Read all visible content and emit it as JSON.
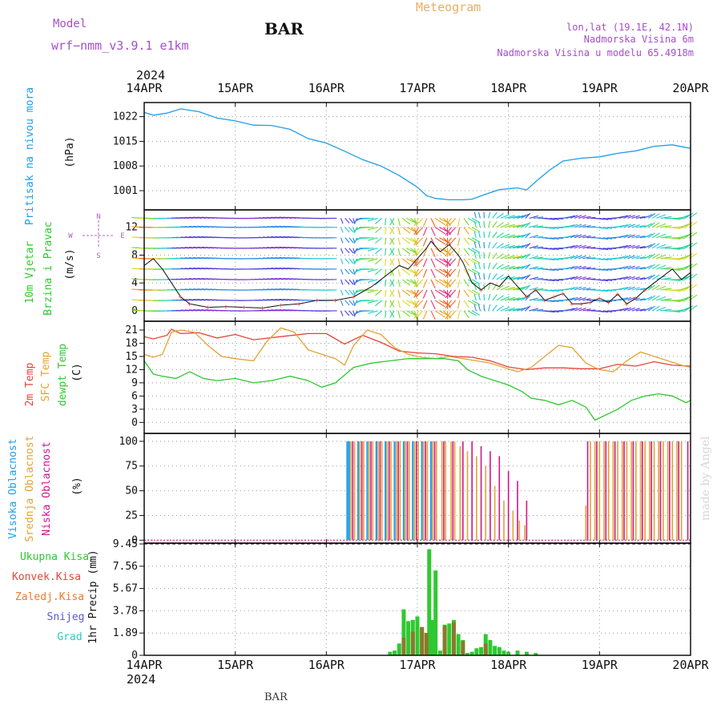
{
  "header": {
    "model_label": "Model",
    "model_name": "wrf−nmm_v3.9.1  e1km",
    "station": "BAR",
    "meteogram_label": "Meteogram",
    "coords": "lon,lat (19.1E, 42.1N)",
    "altitude": "Nadmorska Visina 6m",
    "model_altitude": "Nadmorska Visina u modelu 65.4918m",
    "footer_station": "BAR",
    "watermark": "made by Angel"
  },
  "colors": {
    "pressure": "#1e9ee6",
    "temp2m": "#e8433a",
    "sfc": "#e3a236",
    "dewpt": "#2ec930",
    "cloud_high": "#1e9ee6",
    "cloud_mid": "#e3a236",
    "cloud_low": "#d0168a",
    "precip_total": "#2ec930",
    "precip_conv": "#e8433a",
    "precip_frz": "#f07a2a",
    "precip_snow": "#5858d8",
    "precip_hail": "#2ec9c0",
    "header_purple": "#a64ecb",
    "meteogram_orange": "#e8b060"
  },
  "time_axis": {
    "year": "2024",
    "dates": [
      "14APR",
      "15APR",
      "16APR",
      "17APR",
      "18APR",
      "19APR",
      "20APR"
    ]
  },
  "chart_data": [
    {
      "type": "line",
      "panel": "pressure",
      "ylabel_parts": [
        "Pritisak na nivou mora",
        "(hPa)"
      ],
      "ylim": [
        996,
        1026
      ],
      "yticks": [
        "1001",
        "1008",
        "1015",
        "1022"
      ],
      "grid": true,
      "series": [
        {
          "name": "Pritisak na nivou mora",
          "x": [
            0,
            0.1,
            0.25,
            0.4,
            0.6,
            0.8,
            1.0,
            1.2,
            1.4,
            1.6,
            1.8,
            2.0,
            2.2,
            2.4,
            2.6,
            2.8,
            3.0,
            3.1,
            3.2,
            3.35,
            3.5,
            3.6,
            3.75,
            3.9,
            4.1,
            4.2,
            4.3,
            4.45,
            4.6,
            4.8,
            5.0,
            5.2,
            5.4,
            5.6,
            5.8,
            6.0
          ],
          "y": [
            1023.2,
            1022.4,
            1023.0,
            1024.2,
            1023.4,
            1021.6,
            1020.8,
            1019.6,
            1019.5,
            1018.4,
            1015.8,
            1014.5,
            1012.2,
            1009.8,
            1008.0,
            1005.3,
            1002.0,
            999.6,
            998.8,
            998.4,
            998.4,
            998.6,
            1000.0,
            1001.3,
            1001.8,
            1001.2,
            1003.6,
            1006.8,
            1009.4,
            1010.2,
            1010.6,
            1011.6,
            1012.3,
            1013.6,
            1014.0,
            1013.0
          ]
        }
      ]
    },
    {
      "type": "scatter",
      "panel": "wind",
      "ylabel_parts": [
        "10m Vjetar",
        "Brzina i Pravac",
        "(m/s)"
      ],
      "compass": [
        "N",
        "W",
        "E",
        "S"
      ],
      "ylim": [
        -1.5,
        14
      ],
      "yticks": [
        "0",
        "4",
        "8",
        "12"
      ],
      "grid": true,
      "series": [
        {
          "name": "Brzina",
          "x": [
            0,
            0.1,
            0.2,
            0.3,
            0.4,
            0.5,
            0.7,
            0.9,
            1.1,
            1.3,
            1.5,
            1.7,
            1.9,
            2.1,
            2.3,
            2.5,
            2.7,
            2.8,
            2.9,
            3.0,
            3.1,
            3.15,
            3.25,
            3.35,
            3.45,
            3.5,
            3.6,
            3.7,
            3.8,
            3.9,
            4.0,
            4.1,
            4.2,
            4.3,
            4.4,
            4.5,
            4.6,
            4.7,
            4.8,
            4.9,
            5.0,
            5.1,
            5.2,
            5.3,
            5.4,
            5.5,
            5.6,
            5.7,
            5.8,
            5.9,
            6.0
          ],
          "y": [
            6.5,
            7.5,
            6.0,
            4.0,
            2.0,
            1.0,
            0.5,
            0.6,
            0.5,
            0.4,
            0.8,
            1.0,
            1.5,
            1.5,
            2.0,
            3.5,
            5.5,
            6.5,
            6.0,
            7.5,
            9.0,
            10.0,
            8.5,
            9.5,
            8.0,
            7.0,
            4.0,
            3.0,
            4.0,
            3.5,
            5.0,
            3.5,
            2.0,
            3.0,
            1.5,
            2.0,
            2.5,
            1.0,
            1.0,
            1.2,
            1.8,
            1.2,
            2.4,
            1.0,
            1.8,
            3.0,
            4.0,
            5.0,
            6.0,
            4.5,
            5.5
          ]
        }
      ]
    },
    {
      "type": "line",
      "panel": "temperature",
      "ylabel_parts": [
        "2m Temp",
        "SFC Temp",
        "dewpt Temp",
        "(C)"
      ],
      "ylim": [
        -2,
        23
      ],
      "yticks": [
        "0",
        "3",
        "6",
        "9",
        "12",
        "15",
        "18",
        "21"
      ],
      "grid": true,
      "series": [
        {
          "name": "2m Temp",
          "x": [
            0,
            0.1,
            0.25,
            0.3,
            0.4,
            0.6,
            0.8,
            1.0,
            1.2,
            1.5,
            1.8,
            2.0,
            2.2,
            2.4,
            2.6,
            2.8,
            3.0,
            3.2,
            3.4,
            3.6,
            3.8,
            4.0,
            4.2,
            4.4,
            4.6,
            4.8,
            5.0,
            5.2,
            5.4,
            5.6,
            5.8,
            6.0
          ],
          "y": [
            19.5,
            19.0,
            19.8,
            21.2,
            20.2,
            20.4,
            19.2,
            20.0,
            18.8,
            19.5,
            20.2,
            20.2,
            17.8,
            19.8,
            18.2,
            16.2,
            15.8,
            15.6,
            15.0,
            14.8,
            14.0,
            12.6,
            12.0,
            12.4,
            12.4,
            12.2,
            12.2,
            13.2,
            12.8,
            13.8,
            13.0,
            12.8
          ]
        },
        {
          "name": "SFC Temp",
          "x": [
            0,
            0.1,
            0.2,
            0.3,
            0.4,
            0.55,
            0.7,
            0.85,
            1.0,
            1.2,
            1.35,
            1.5,
            1.65,
            1.8,
            1.95,
            2.1,
            2.2,
            2.3,
            2.45,
            2.6,
            2.75,
            2.9,
            3.05,
            3.2,
            3.35,
            3.5,
            3.65,
            3.8,
            3.95,
            4.1,
            4.25,
            4.4,
            4.55,
            4.7,
            4.85,
            5.0,
            5.15,
            5.3,
            5.45,
            5.6,
            5.75,
            5.9,
            6.0
          ],
          "y": [
            15.5,
            14.8,
            15.5,
            20.5,
            21.0,
            20.5,
            17.5,
            15.0,
            14.5,
            14.0,
            18.5,
            21.5,
            20.5,
            16.5,
            15.5,
            14.5,
            13.0,
            17.5,
            21.0,
            20.0,
            17.0,
            15.5,
            14.8,
            14.5,
            15.0,
            14.5,
            14.0,
            13.5,
            12.5,
            11.5,
            12.5,
            15.0,
            17.5,
            17.0,
            13.5,
            12.0,
            11.5,
            14.0,
            16.0,
            15.0,
            14.0,
            13.0,
            12.5
          ]
        },
        {
          "name": "dewpt Temp",
          "x": [
            0,
            0.1,
            0.2,
            0.35,
            0.5,
            0.65,
            0.8,
            1.0,
            1.2,
            1.4,
            1.6,
            1.8,
            1.95,
            2.1,
            2.3,
            2.5,
            2.7,
            2.9,
            3.1,
            3.3,
            3.45,
            3.55,
            3.7,
            3.85,
            4.0,
            4.15,
            4.25,
            4.4,
            4.55,
            4.7,
            4.85,
            4.95,
            5.05,
            5.2,
            5.35,
            5.5,
            5.65,
            5.8,
            5.95,
            6.0
          ],
          "y": [
            14.0,
            11.0,
            10.5,
            10.0,
            11.5,
            10.0,
            9.5,
            10.0,
            9.0,
            9.5,
            10.5,
            9.5,
            8.0,
            9.0,
            12.5,
            13.5,
            14.0,
            14.5,
            14.5,
            14.5,
            14.0,
            12.0,
            10.5,
            9.5,
            8.5,
            7.0,
            5.5,
            5.0,
            4.0,
            5.0,
            3.5,
            0.5,
            1.5,
            3.0,
            5.0,
            6.0,
            6.5,
            6.0,
            4.5,
            5.0
          ]
        }
      ]
    },
    {
      "type": "bar",
      "panel": "clouds",
      "ylabel_parts": [
        "Visoka Oblacnost",
        "Srednja Oblacnost",
        "Niska Oblacnost",
        "(%)"
      ],
      "ylim": [
        0,
        100
      ],
      "yticks": [
        "0",
        "25",
        "50",
        "75",
        "100"
      ],
      "grid": true,
      "series": [
        {
          "name": "Visoka Oblacnost",
          "x": [
            2.23,
            2.25,
            2.35,
            2.45,
            2.55,
            2.65,
            2.75,
            2.85,
            2.95,
            3.05,
            3.15
          ],
          "values": [
            100,
            100,
            100,
            100,
            100,
            100,
            100,
            100,
            100,
            100,
            100
          ]
        },
        {
          "name": "Srednja Oblacnost",
          "x": [
            2.27,
            2.31,
            2.37,
            2.41,
            2.47,
            2.51,
            2.57,
            2.61,
            2.67,
            2.71,
            2.77,
            2.81,
            2.87,
            2.91,
            2.97,
            3.01,
            3.07,
            3.11,
            3.17,
            3.21,
            3.27,
            3.31,
            3.37,
            3.41,
            3.47,
            3.55,
            3.65,
            3.75,
            3.85,
            3.95,
            4.05,
            4.12,
            4.18,
            4.85,
            4.9,
            4.95,
            5.0,
            5.05,
            5.1,
            5.15,
            5.2,
            5.25,
            5.3,
            5.35,
            5.4,
            5.45,
            5.5,
            5.55,
            5.6,
            5.65,
            5.7,
            5.75,
            5.8,
            5.85,
            5.9
          ],
          "values": [
            100,
            100,
            100,
            100,
            100,
            100,
            100,
            100,
            100,
            100,
            100,
            100,
            100,
            100,
            100,
            100,
            100,
            100,
            100,
            100,
            100,
            100,
            100,
            100,
            95,
            90,
            85,
            75,
            55,
            40,
            30,
            20,
            15,
            35,
            100,
            100,
            100,
            100,
            100,
            100,
            100,
            100,
            100,
            100,
            100,
            100,
            100,
            100,
            100,
            100,
            100,
            100,
            100,
            100,
            100
          ]
        },
        {
          "name": "Niska Oblacnost",
          "x": [
            2.29,
            2.39,
            2.49,
            2.59,
            2.69,
            2.79,
            2.89,
            2.99,
            3.09,
            3.19,
            3.29,
            3.39,
            3.5,
            3.6,
            3.7,
            3.8,
            3.9,
            4.0,
            4.1,
            4.2,
            4.87,
            4.97,
            5.07,
            5.17,
            5.27,
            5.37,
            5.47,
            5.57,
            5.67,
            5.77,
            5.87,
            5.97
          ],
          "values": [
            100,
            100,
            100,
            100,
            100,
            100,
            100,
            100,
            100,
            100,
            100,
            100,
            100,
            100,
            95,
            90,
            85,
            70,
            60,
            40,
            100,
            100,
            100,
            100,
            100,
            100,
            100,
            100,
            100,
            100,
            100,
            100
          ]
        }
      ]
    },
    {
      "type": "bar",
      "panel": "precipitation",
      "ylabel_parts": [
        "Ukupna Kisa",
        "Konvek.Kisa",
        "Zaledj.Kisa",
        "Snijeg",
        "Grad",
        "1hr Precip (mm)"
      ],
      "ylim": [
        0,
        9.45
      ],
      "yticks": [
        "0",
        "1.89",
        "3.78",
        "5.67",
        "7.56",
        "9.45"
      ],
      "grid": true,
      "series": [
        {
          "name": "Ukupna Kisa",
          "x": [
            2.7,
            2.75,
            2.8,
            2.85,
            2.9,
            2.95,
            3.0,
            3.05,
            3.1,
            3.13,
            3.17,
            3.2,
            3.25,
            3.3,
            3.35,
            3.4,
            3.45,
            3.5,
            3.55,
            3.6,
            3.65,
            3.7,
            3.75,
            3.8,
            3.85,
            3.9,
            3.95,
            4.0,
            4.1,
            4.2,
            4.3
          ],
          "values": [
            0.3,
            0.4,
            1.0,
            3.9,
            2.9,
            3.0,
            3.3,
            2.4,
            1.9,
            9.0,
            3.0,
            7.2,
            0.4,
            2.6,
            2.7,
            3.0,
            1.8,
            1.3,
            0.2,
            0.3,
            0.6,
            0.7,
            1.8,
            1.3,
            0.8,
            0.7,
            0.4,
            0.3,
            0.4,
            0.3,
            0.2
          ]
        },
        {
          "name": "Konvek.Kisa",
          "x": [
            2.85,
            2.95,
            3.05,
            3.1,
            3.3,
            3.4,
            3.5,
            3.75
          ],
          "values": [
            1.5,
            2.0,
            2.4,
            1.9,
            2.5,
            2.8,
            1.2,
            1.0
          ]
        }
      ]
    }
  ]
}
